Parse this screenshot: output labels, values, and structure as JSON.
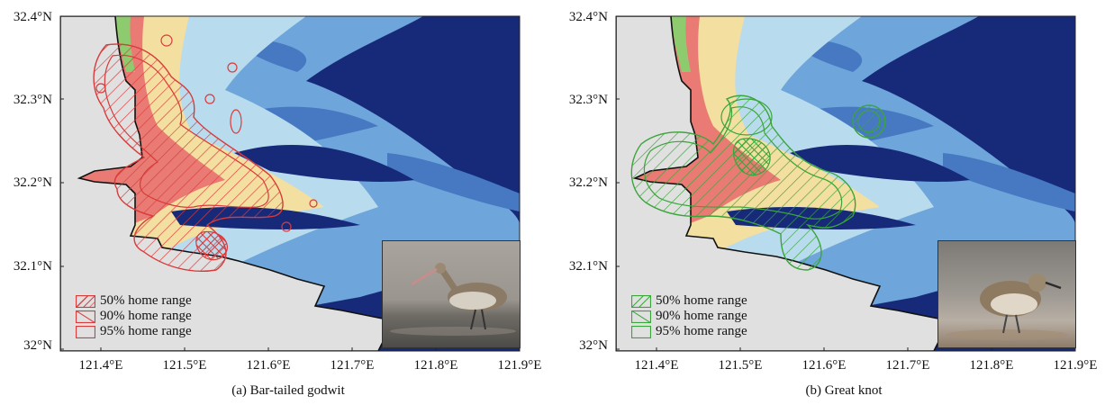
{
  "panels": [
    {
      "caption": "(a) Bar-tailed godwit",
      "species": "Bar-tailed godwit",
      "range_color": "#d93a3a",
      "legend": [
        "50% home range",
        "90% home range",
        "95% home range"
      ],
      "photo_icon": "bar-tailed-godwit-photo"
    },
    {
      "caption": "(b) Great knot",
      "species": "Great knot",
      "range_color": "#3aa53a",
      "legend": [
        "50% home range",
        "90% home range",
        "95% home range"
      ],
      "photo_icon": "great-knot-photo"
    }
  ],
  "axes": {
    "lat_labels": [
      "32.4°N",
      "32.3°N",
      "32.2°N",
      "32.1°N",
      "32°N"
    ],
    "lon_labels": [
      "121.4°E",
      "121.5°E",
      "121.6°E",
      "121.7°E",
      "121.8°E",
      "121.9°E"
    ],
    "lat_range": [
      32.0,
      32.4
    ],
    "lon_range": [
      121.35,
      121.9
    ]
  },
  "map_colors": {
    "land": "#e0e0e0",
    "vegetation": "#8ecb6f",
    "high_tidal_flat": "#ea7b74",
    "mid_tidal_flat": "#f3df9f",
    "low_tidal_flat": "#b9dbee",
    "shallow_water": "#6ea6db",
    "deep_channel": "#4679c2",
    "open_sea": "#172a7a"
  }
}
